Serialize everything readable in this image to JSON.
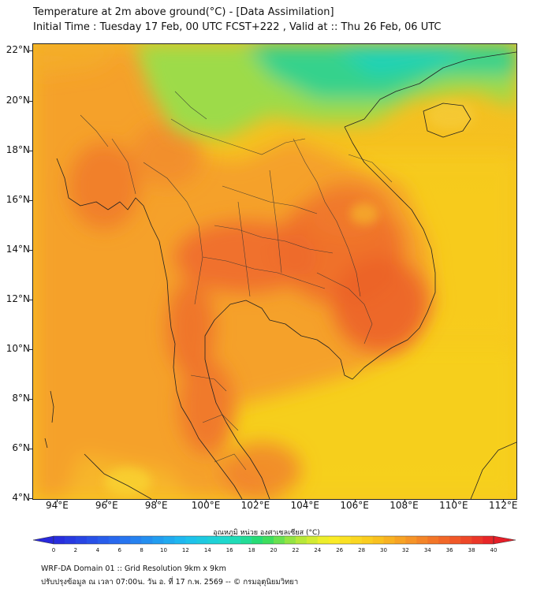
{
  "title_line1": "Temperature at 2m above ground(°C) - [Data Assimilation]",
  "title_line2": "Initial Time : Tuesday 17 Feb, 00 UTC FCST+222 , Valid at :: Thu 26 Feb, 06 UTC",
  "colorbar": {
    "title": "อุณหภูมิ หน่วย องศาเซลเซียส (°C)",
    "min": 0,
    "max": 40,
    "step": 1,
    "tick_labels": [
      "0",
      "2",
      "4",
      "6",
      "8",
      "10",
      "12",
      "14",
      "16",
      "18",
      "20",
      "22",
      "24",
      "26",
      "28",
      "30",
      "32",
      "34",
      "36",
      "38",
      "40"
    ]
  },
  "axes": {
    "lat_labels": [
      "22°N",
      "20°N",
      "18°N",
      "16°N",
      "14°N",
      "12°N",
      "10°N",
      "8°N",
      "6°N",
      "4°N"
    ],
    "lon_labels": [
      "94°E",
      "96°E",
      "98°E",
      "100°E",
      "102°E",
      "104°E",
      "106°E",
      "108°E",
      "110°E",
      "112°E"
    ],
    "lat_range": [
      4,
      22.3
    ],
    "lon_range": [
      93,
      112.5
    ]
  },
  "footer_line1": "WRF-DA Domain 01 :: Grid Resolution 9km x 9km",
  "footer_line2": "ปรับปรุงข้อมูล ณ เวลา 07:00น. วัน อ. ที่ 17 ก.พ. 2569 -- © กรมอุตุนิยมวิทยา",
  "colors": {
    "sea": "#f6d21b",
    "land_warm": "#f7a52b",
    "land_hot": "#f06c2c",
    "cool_north": "#3ad28a",
    "border": "#222222"
  }
}
